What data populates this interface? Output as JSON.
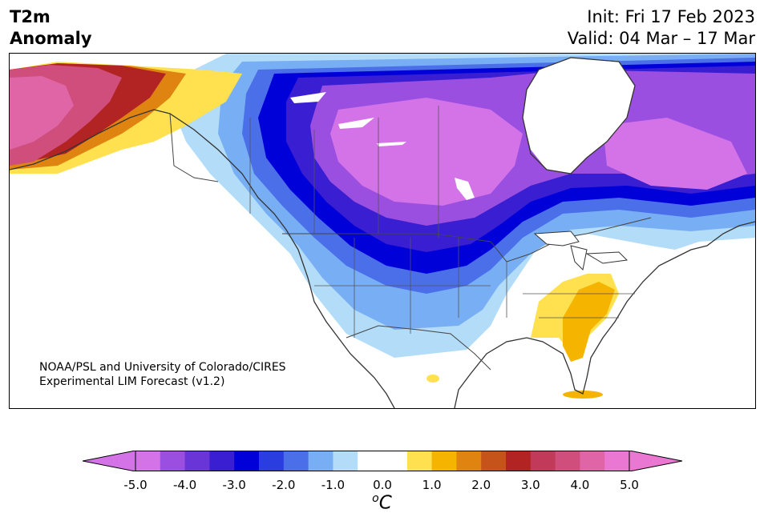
{
  "header": {
    "title_line1": "T2m",
    "title_line2": "Anomaly",
    "init_text": "Init: Fri 17 Feb 2023",
    "valid_text": "Valid: 04 Mar – 17 Mar"
  },
  "map": {
    "region": "North America",
    "credit_line1": "NOAA/PSL and University of Colorado/CIRES",
    "credit_line2": "Experimental LIM Forecast (v1.2)",
    "anomaly_regions": [
      {
        "area": "Alaska west",
        "anomaly_c": 4.5
      },
      {
        "area": "Alaska central",
        "anomaly_c": 3.0
      },
      {
        "area": "Yukon",
        "anomaly_c": 1.5
      },
      {
        "area": "Canadian Prairies / Hudson Bay",
        "anomaly_c": -4.5
      },
      {
        "area": "Northern Plains / Great Lakes",
        "anomaly_c": -3.0
      },
      {
        "area": "Pacific Northwest",
        "anomaly_c": -1.5
      },
      {
        "area": "US Southwest",
        "anomaly_c": -0.8
      },
      {
        "area": "Southeast US",
        "anomaly_c": 1.0
      },
      {
        "area": "Florida",
        "anomaly_c": 1.5
      },
      {
        "area": "Quebec / Labrador",
        "anomaly_c": -4.5
      }
    ]
  },
  "colorbar": {
    "unit_label": "C",
    "unit_sup": "o",
    "min": -5.0,
    "max": 5.0,
    "tick_labels": [
      "-5.0",
      "-4.0",
      "-3.0",
      "-2.0",
      "-1.0",
      "0.0",
      "1.0",
      "2.0",
      "3.0",
      "4.0",
      "5.0"
    ],
    "colors": [
      "#d473e8",
      "#9b4fe0",
      "#6a35d6",
      "#3a1ed2",
      "#0000d8",
      "#2a3ee0",
      "#4a6fe8",
      "#78aff4",
      "#b2dcf8",
      "#ffffff",
      "#ffffff",
      "#ffe14f",
      "#f4b400",
      "#df8411",
      "#c6531a",
      "#b22424",
      "#c23a5a",
      "#cf4e7c",
      "#df65a6",
      "#ea77d2"
    ],
    "under_color": "#d473e8",
    "over_color": "#ea77d2"
  }
}
